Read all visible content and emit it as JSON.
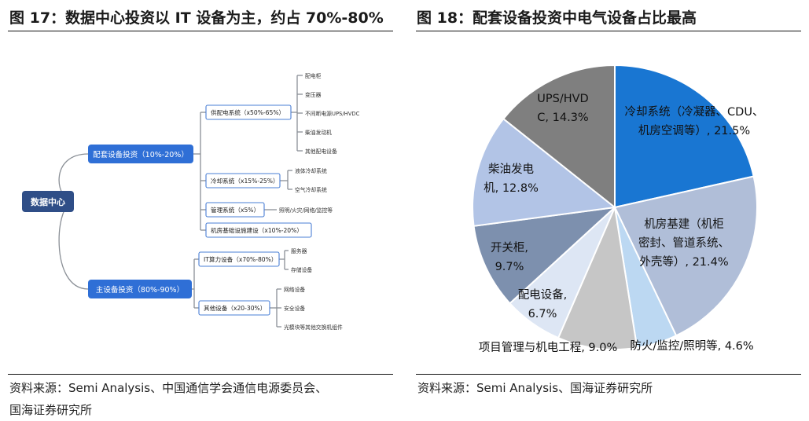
{
  "left_figure": {
    "title": "图 17：数据中心投资以 IT 设备为主，约占 70%-80%",
    "source_lines": [
      "资料来源：Semi Analysis、中国通信学会通信电源委员会、",
      "国海证券研究所"
    ],
    "mindmap": {
      "root": "数据中心",
      "branches": [
        {
          "label": "配套设备投资（10%-20%）",
          "children": [
            {
              "label": "供配电系统（x50%-65%）",
              "leaves": [
                "配电柜",
                "变压器",
                "不间断电源UPS/HVDC",
                "柴油发动机",
                "其他配电设备"
              ]
            },
            {
              "label": "冷却系统（x15%-25%）",
              "leaves": [
                "液体冷却系统",
                "空气冷却系统"
              ]
            },
            {
              "label": "管理系统（x5%）",
              "leaves": [
                "照明/火灾/网络/监控等"
              ]
            },
            {
              "label": "机房基础设施建设（x10%-20%）",
              "leaves": []
            }
          ]
        },
        {
          "label": "主设备投资（80%-90%）",
          "children": [
            {
              "label": "IT算力设备（x70%-80%）",
              "leaves": [
                "服务器",
                "存储设备"
              ]
            },
            {
              "label": "其他设备（x20-30%）",
              "leaves": [
                "网络设备",
                "安全设备",
                "光模块等其他交换机组件"
              ]
            }
          ]
        }
      ]
    }
  },
  "right_figure": {
    "title": "图 18：配套设备投资中电气设备占比最高",
    "source_lines": [
      "资料来源：Semi Analysis、国海证券研究所"
    ]
  },
  "chart_data": {
    "type": "pie",
    "start_angle_deg": 0,
    "direction": "clockwise",
    "slices": [
      {
        "label_lines": [
          "冷却系统（冷凝器、CDU、",
          "机房空调等）, 21.5%"
        ],
        "value": 21.5,
        "color": "#1976D2"
      },
      {
        "label_lines": [
          "机房基建（机柜",
          "密封、管道系统、",
          "外壳等）, 21.4%"
        ],
        "value": 21.4,
        "color": "#B0BED8"
      },
      {
        "label_lines": [
          "防火/监控/照明等, 4.6%"
        ],
        "value": 4.6,
        "color": "#BCD8F2"
      },
      {
        "label_lines": [
          "项目管理与机电工程, 9.0%"
        ],
        "value": 9.0,
        "color": "#C6C6C6"
      },
      {
        "label_lines": [
          "配电设备,",
          "6.7%"
        ],
        "value": 6.7,
        "color": "#DDE6F4"
      },
      {
        "label_lines": [
          "开关柜,",
          "9.7%"
        ],
        "value": 9.7,
        "color": "#7D90AE"
      },
      {
        "label_lines": [
          "柴油发电",
          "机, 12.8%"
        ],
        "value": 12.8,
        "color": "#B2C4E6"
      },
      {
        "label_lines": [
          "UPS/HVD",
          "C, 14.3%"
        ],
        "value": 14.3,
        "color": "#7F7F7F"
      }
    ]
  }
}
